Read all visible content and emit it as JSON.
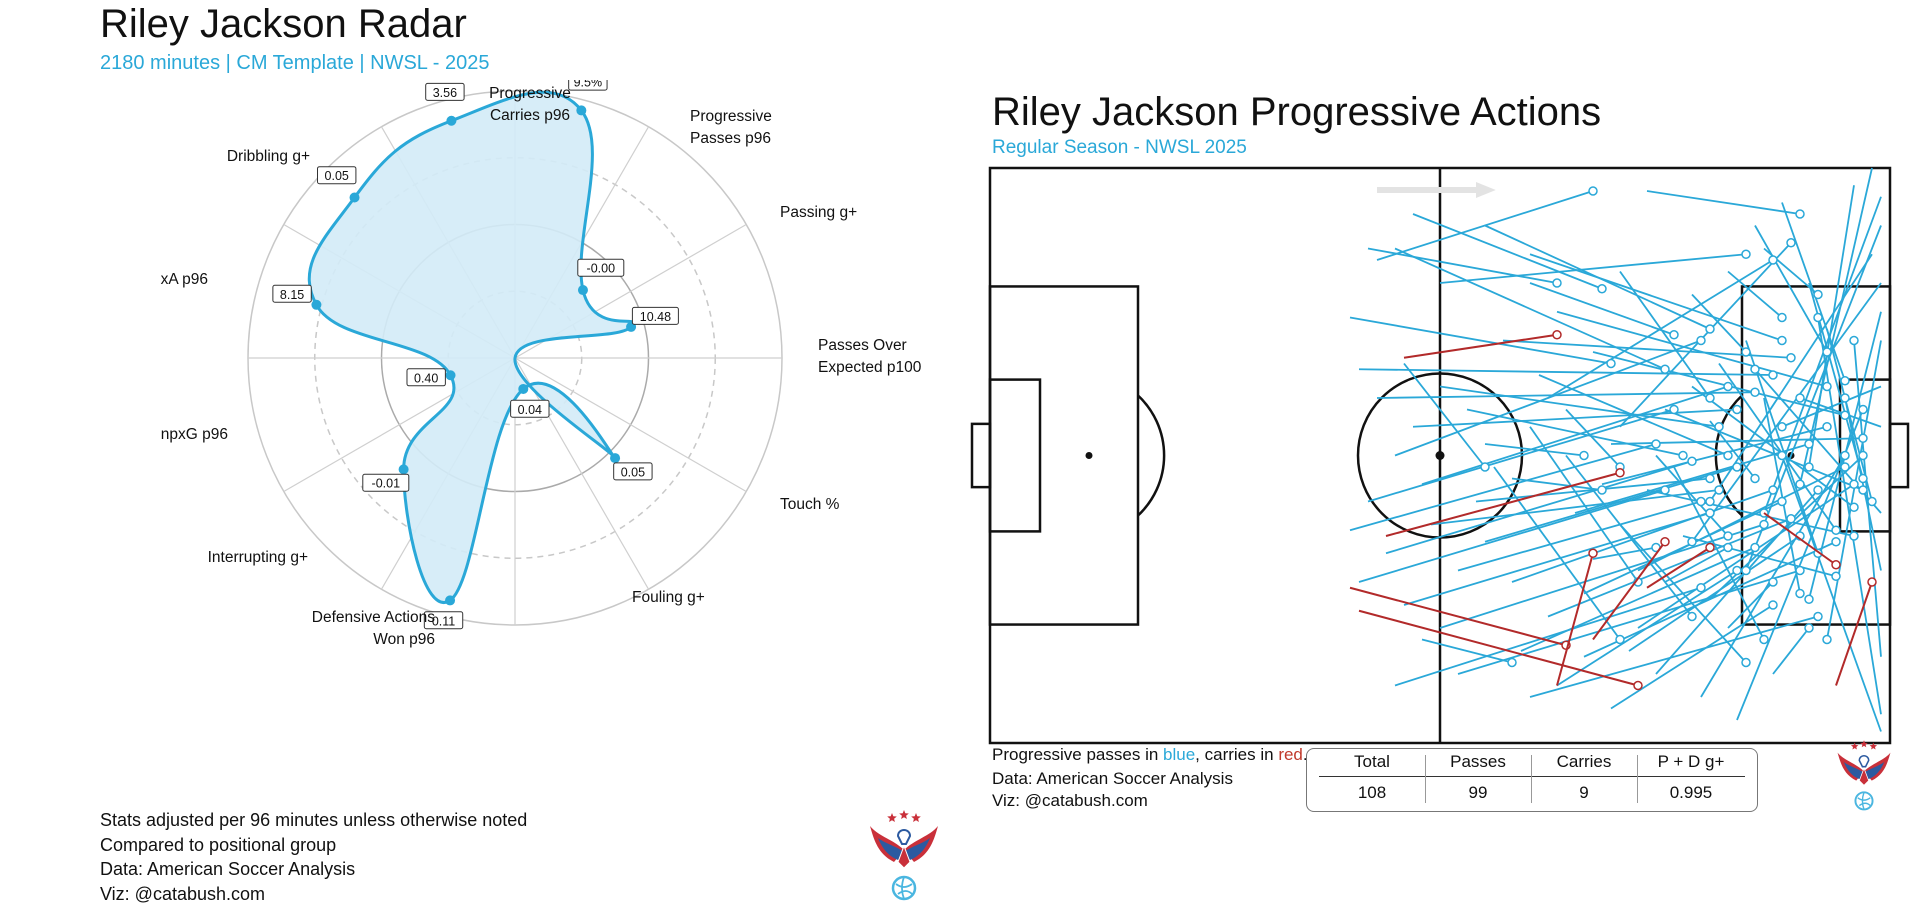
{
  "radar": {
    "title": "Riley Jackson Radar",
    "subtitle": "2180 minutes | CM Template | NWSL - 2025",
    "footer": [
      "Stats adjusted per 96 minutes unless otherwise noted",
      "Compared to positional group",
      "Data: American Soccer Analysis",
      "Viz: @catabush.com"
    ]
  },
  "pitch": {
    "title": "Riley Jackson Progressive Actions",
    "subtitle": "Regular Season - NWSL 2025",
    "caption": {
      "prefix": "Progressive passes in ",
      "blue_word": "blue",
      "middle": ", carries in ",
      "red_word": "red",
      "suffix": "."
    },
    "source": "Data: American Soccer Analysis",
    "viz": "Viz: @catabush.com",
    "table": {
      "headers": [
        "Total",
        "Passes",
        "Carries",
        "P + D g+"
      ],
      "values": [
        "108",
        "99",
        "9",
        "0.995"
      ]
    }
  },
  "colors": {
    "accent": "#2aa8d8",
    "fill": "#d3ebf7",
    "carry": "#b22a2a",
    "grid": "#c8c8c8",
    "logo_red": "#c9303a",
    "logo_blue": "#2c5aa0",
    "logo_ball": "#4ab6e0"
  },
  "icons": [
    "eagle-logo-icon",
    "direction-arrow-icon"
  ],
  "chart_data": [
    {
      "type": "radar",
      "title": "Riley Jackson Radar",
      "subtitle": "2180 minutes | CM Template | NWSL - 2025",
      "axes": [
        {
          "label": [
            "Progressive",
            "Passes p96"
          ],
          "value_label": "8.15",
          "percentile": 77
        },
        {
          "label": [
            "Passing g+"
          ],
          "value_label": "0.05",
          "percentile": 85
        },
        {
          "label": [
            "Passes Over",
            "Expected p100"
          ],
          "value_label": "3.56",
          "percentile": 92
        },
        {
          "label": [
            "Touch %"
          ],
          "value_label": "9.5%",
          "percentile": 96
        },
        {
          "label": [
            "Fouling g+"
          ],
          "value_label": "-0.00",
          "percentile": 36
        },
        {
          "label": [
            "Defensive Actions",
            "Won p96"
          ],
          "value_label": "10.48",
          "percentile": 45
        },
        {
          "label": [
            "Interrupting g+"
          ],
          "value_label": "",
          "percentile": 0
        },
        {
          "label": [
            "npxG p96"
          ],
          "value_label": "0.05",
          "percentile": 53
        },
        {
          "label": [
            "xA p96"
          ],
          "value_label": "0.04",
          "percentile": 12
        },
        {
          "label": [
            "Dribbling g+"
          ],
          "value_label": "0.11",
          "percentile": 94
        },
        {
          "label": [
            "Dribbling g+"
          ],
          "value_label": "-0.01",
          "percentile": 59
        },
        {
          "label": [
            "Progressive",
            "Carries p96"
          ],
          "value_label": "0.40",
          "percentile": 25
        }
      ],
      "visible_axis_labels": [
        [
          "Progressive",
          "Carries p96"
        ],
        [
          "Progressive",
          "Passes p96"
        ],
        [
          "Passing g+"
        ],
        [
          "Passes Over",
          "Expected p100"
        ],
        [
          "Touch %"
        ],
        [
          "Fouling g+"
        ],
        [
          "Defensive Actions",
          "Won p96"
        ],
        [
          "Interrupting g+"
        ],
        [
          "npxG p96"
        ],
        [
          "xA p96"
        ],
        [
          "Dribbling g+"
        ]
      ],
      "rlim": [
        0,
        100
      ],
      "grid": true
    },
    {
      "type": "scatter",
      "title": "Riley Jackson Progressive Actions",
      "subtitle": "Regular Season - NWSL 2025",
      "xlim": [
        0,
        100
      ],
      "ylim": [
        0,
        100
      ],
      "passes": [
        {
          "x1": 43,
          "y1": 84,
          "x2": 67,
          "y2": 96
        },
        {
          "x1": 73,
          "y1": 96,
          "x2": 90,
          "y2": 92
        },
        {
          "x1": 42,
          "y1": 86,
          "x2": 63,
          "y2": 80
        },
        {
          "x1": 47,
          "y1": 92,
          "x2": 68,
          "y2": 79
        },
        {
          "x1": 40,
          "y1": 74,
          "x2": 69,
          "y2": 66
        },
        {
          "x1": 45,
          "y1": 86,
          "x2": 75,
          "y2": 65
        },
        {
          "x1": 55,
          "y1": 90,
          "x2": 80,
          "y2": 72
        },
        {
          "x1": 60,
          "y1": 85,
          "x2": 88,
          "y2": 70
        },
        {
          "x1": 50,
          "y1": 80,
          "x2": 84,
          "y2": 85
        },
        {
          "x1": 62,
          "y1": 60,
          "x2": 87,
          "y2": 84
        },
        {
          "x1": 70,
          "y1": 55,
          "x2": 89,
          "y2": 87
        },
        {
          "x1": 45,
          "y1": 50,
          "x2": 79,
          "y2": 70
        },
        {
          "x1": 48,
          "y1": 45,
          "x2": 82,
          "y2": 62
        },
        {
          "x1": 42,
          "y1": 42,
          "x2": 76,
          "y2": 58
        },
        {
          "x1": 40,
          "y1": 37,
          "x2": 74,
          "y2": 52
        },
        {
          "x1": 44,
          "y1": 33,
          "x2": 78,
          "y2": 49
        },
        {
          "x1": 41,
          "y1": 28,
          "x2": 75,
          "y2": 44
        },
        {
          "x1": 46,
          "y1": 24,
          "x2": 80,
          "y2": 40
        },
        {
          "x1": 50,
          "y1": 20,
          "x2": 86,
          "y2": 38
        },
        {
          "x1": 45,
          "y1": 10,
          "x2": 79,
          "y2": 27
        },
        {
          "x1": 52,
          "y1": 12,
          "x2": 90,
          "y2": 30
        },
        {
          "x1": 60,
          "y1": 8,
          "x2": 92,
          "y2": 22
        },
        {
          "x1": 66,
          "y1": 15,
          "x2": 94,
          "y2": 35
        },
        {
          "x1": 72,
          "y1": 20,
          "x2": 96,
          "y2": 45
        },
        {
          "x1": 80,
          "y1": 25,
          "x2": 97,
          "y2": 50
        },
        {
          "x1": 98,
          "y1": 100,
          "x2": 90,
          "y2": 45
        },
        {
          "x1": 99,
          "y1": 95,
          "x2": 86,
          "y2": 40
        },
        {
          "x1": 99,
          "y1": 90,
          "x2": 84,
          "y2": 30
        },
        {
          "x1": 98,
          "y1": 85,
          "x2": 80,
          "y2": 42
        },
        {
          "x1": 99,
          "y1": 80,
          "x2": 78,
          "y2": 35
        },
        {
          "x1": 99,
          "y1": 75,
          "x2": 91,
          "y2": 25
        },
        {
          "x1": 99,
          "y1": 70,
          "x2": 93,
          "y2": 18
        },
        {
          "x1": 99,
          "y1": 62,
          "x2": 88,
          "y2": 55
        },
        {
          "x1": 99,
          "y1": 55,
          "x2": 90,
          "y2": 60
        },
        {
          "x1": 99,
          "y1": 40,
          "x2": 85,
          "y2": 65
        },
        {
          "x1": 99,
          "y1": 30,
          "x2": 95,
          "y2": 60
        },
        {
          "x1": 99,
          "y1": 15,
          "x2": 96,
          "y2": 70
        },
        {
          "x1": 99,
          "y1": 5,
          "x2": 92,
          "y2": 74
        },
        {
          "x1": 99,
          "y1": 2,
          "x2": 88,
          "y2": 50
        },
        {
          "x1": 96,
          "y1": 97,
          "x2": 91,
          "y2": 48
        },
        {
          "x1": 55,
          "y1": 35,
          "x2": 83,
          "y2": 48
        },
        {
          "x1": 58,
          "y1": 28,
          "x2": 87,
          "y2": 44
        },
        {
          "x1": 62,
          "y1": 22,
          "x2": 89,
          "y2": 39
        },
        {
          "x1": 65,
          "y1": 40,
          "x2": 91,
          "y2": 52
        },
        {
          "x1": 68,
          "y1": 45,
          "x2": 93,
          "y2": 55
        },
        {
          "x1": 72,
          "y1": 30,
          "x2": 95,
          "y2": 48
        },
        {
          "x1": 75,
          "y1": 58,
          "x2": 97,
          "y2": 44
        },
        {
          "x1": 78,
          "y1": 62,
          "x2": 96,
          "y2": 41
        },
        {
          "x1": 81,
          "y1": 66,
          "x2": 94,
          "y2": 37
        },
        {
          "x1": 84,
          "y1": 70,
          "x2": 92,
          "y2": 33
        },
        {
          "x1": 86,
          "y1": 60,
          "x2": 90,
          "y2": 26
        },
        {
          "x1": 76,
          "y1": 48,
          "x2": 86,
          "y2": 18
        },
        {
          "x1": 70,
          "y1": 38,
          "x2": 84,
          "y2": 14
        },
        {
          "x1": 64,
          "y1": 50,
          "x2": 78,
          "y2": 22
        },
        {
          "x1": 60,
          "y1": 55,
          "x2": 72,
          "y2": 28
        },
        {
          "x1": 56,
          "y1": 48,
          "x2": 70,
          "y2": 18
        },
        {
          "x1": 53,
          "y1": 58,
          "x2": 77,
          "y2": 50
        },
        {
          "x1": 50,
          "y1": 62,
          "x2": 81,
          "y2": 55
        },
        {
          "x1": 47,
          "y1": 55,
          "x2": 83,
          "y2": 58
        },
        {
          "x1": 43,
          "y1": 60,
          "x2": 85,
          "y2": 61
        },
        {
          "x1": 41,
          "y1": 65,
          "x2": 87,
          "y2": 64
        },
        {
          "x1": 57,
          "y1": 70,
          "x2": 89,
          "y2": 67
        },
        {
          "x1": 63,
          "y1": 75,
          "x2": 93,
          "y2": 62
        },
        {
          "x1": 67,
          "y1": 68,
          "x2": 95,
          "y2": 57
        },
        {
          "x1": 69,
          "y1": 52,
          "x2": 97,
          "y2": 53
        },
        {
          "x1": 73,
          "y1": 44,
          "x2": 96,
          "y2": 36
        },
        {
          "x1": 77,
          "y1": 36,
          "x2": 94,
          "y2": 29
        },
        {
          "x1": 74,
          "y1": 12,
          "x2": 92,
          "y2": 44
        },
        {
          "x1": 79,
          "y1": 8,
          "x2": 95,
          "y2": 50
        },
        {
          "x1": 83,
          "y1": 4,
          "x2": 97,
          "y2": 58
        },
        {
          "x1": 85,
          "y1": 90,
          "x2": 93,
          "y2": 68
        },
        {
          "x1": 88,
          "y1": 94,
          "x2": 95,
          "y2": 63
        },
        {
          "x1": 91,
          "y1": 80,
          "x2": 97,
          "y2": 46
        },
        {
          "x1": 93,
          "y1": 72,
          "x2": 98,
          "y2": 42
        },
        {
          "x1": 61,
          "y1": 64,
          "x2": 82,
          "y2": 50
        },
        {
          "x1": 54,
          "y1": 42,
          "x2": 80,
          "y2": 46
        },
        {
          "x1": 52,
          "y1": 30,
          "x2": 79,
          "y2": 42
        },
        {
          "x1": 49,
          "y1": 38,
          "x2": 81,
          "y2": 44
        },
        {
          "x1": 66,
          "y1": 26,
          "x2": 88,
          "y2": 42
        },
        {
          "x1": 71,
          "y1": 16,
          "x2": 90,
          "y2": 36
        },
        {
          "x1": 59,
          "y1": 16,
          "x2": 85,
          "y2": 34
        },
        {
          "x1": 63,
          "y1": 10,
          "x2": 83,
          "y2": 30
        },
        {
          "x1": 69,
          "y1": 6,
          "x2": 87,
          "y2": 24
        },
        {
          "x1": 46,
          "y1": 66,
          "x2": 55,
          "y2": 48
        },
        {
          "x1": 55,
          "y1": 52,
          "x2": 66,
          "y2": 50
        },
        {
          "x1": 58,
          "y1": 46,
          "x2": 68,
          "y2": 44
        },
        {
          "x1": 64,
          "y1": 58,
          "x2": 70,
          "y2": 48
        },
        {
          "x1": 67,
          "y1": 32,
          "x2": 74,
          "y2": 34
        },
        {
          "x1": 48,
          "y1": 18,
          "x2": 58,
          "y2": 14
        },
        {
          "x1": 75,
          "y1": 28,
          "x2": 82,
          "y2": 34
        },
        {
          "x1": 82,
          "y1": 20,
          "x2": 87,
          "y2": 28
        },
        {
          "x1": 87,
          "y1": 12,
          "x2": 91,
          "y2": 20
        },
        {
          "x1": 60,
          "y1": 80,
          "x2": 76,
          "y2": 71
        },
        {
          "x1": 78,
          "y1": 78,
          "x2": 84,
          "y2": 68
        },
        {
          "x1": 82,
          "y1": 82,
          "x2": 88,
          "y2": 74
        },
        {
          "x1": 86,
          "y1": 86,
          "x2": 92,
          "y2": 78
        },
        {
          "x1": 70,
          "y1": 82,
          "x2": 80,
          "y2": 60
        },
        {
          "x1": 74,
          "y1": 50,
          "x2": 82,
          "y2": 36
        },
        {
          "x1": 80,
          "y1": 56,
          "x2": 85,
          "y2": 46
        }
      ],
      "carries": [
        {
          "x1": 46,
          "y1": 67,
          "x2": 63,
          "y2": 71
        },
        {
          "x1": 44,
          "y1": 36,
          "x2": 70,
          "y2": 47
        },
        {
          "x1": 40,
          "y1": 27,
          "x2": 64,
          "y2": 17
        },
        {
          "x1": 41,
          "y1": 23,
          "x2": 72,
          "y2": 10
        },
        {
          "x1": 63,
          "y1": 10,
          "x2": 67,
          "y2": 33
        },
        {
          "x1": 67,
          "y1": 18,
          "x2": 75,
          "y2": 35
        },
        {
          "x1": 73,
          "y1": 27,
          "x2": 80,
          "y2": 34
        },
        {
          "x1": 86,
          "y1": 40,
          "x2": 94,
          "y2": 31
        },
        {
          "x1": 94,
          "y1": 10,
          "x2": 98,
          "y2": 28
        }
      ]
    }
  ]
}
